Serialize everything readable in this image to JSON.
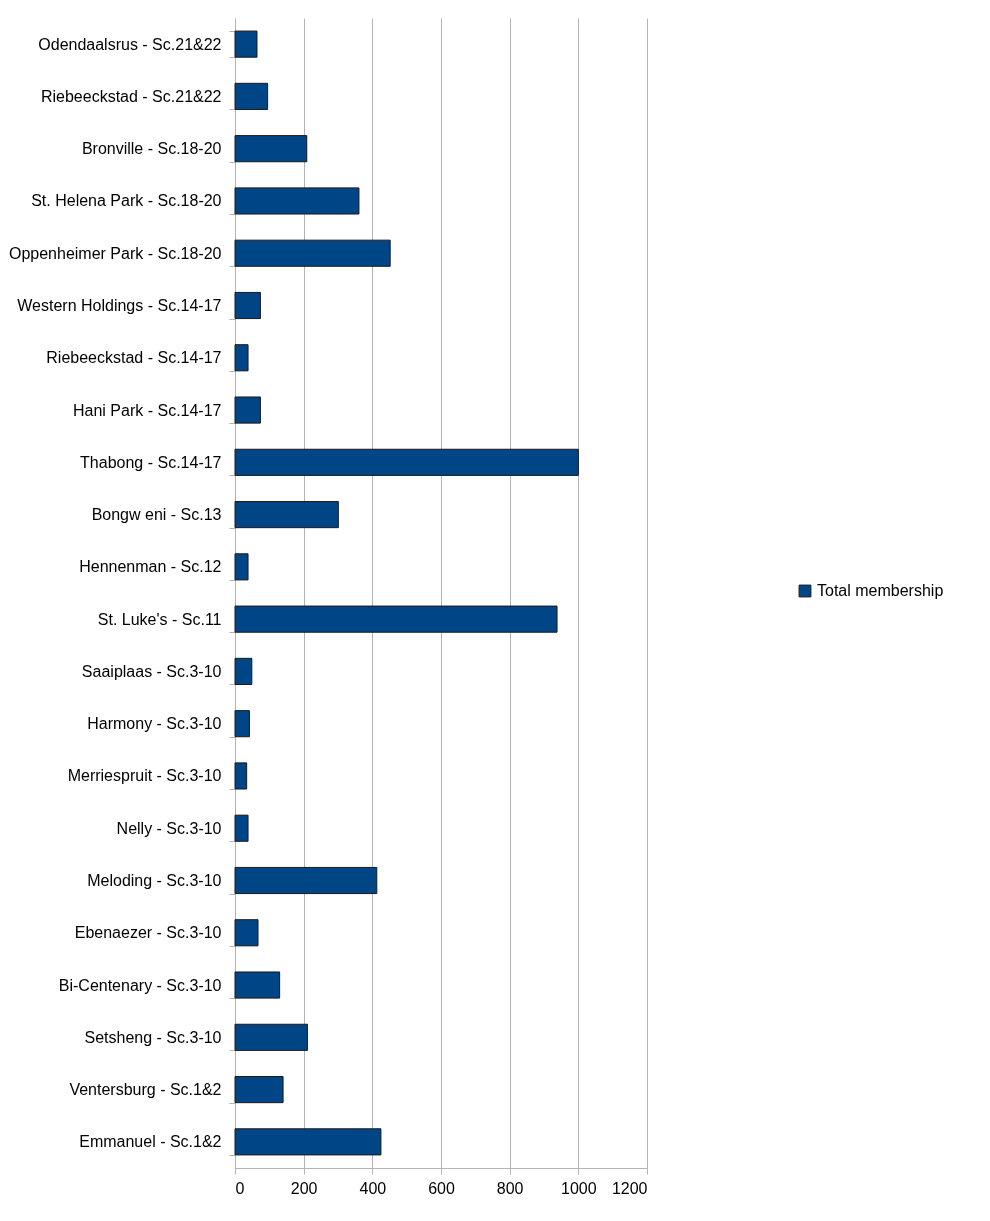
{
  "chart_data": {
    "type": "bar",
    "orientation": "horizontal",
    "categories": [
      "Odendaalsrus - Sc.21&22",
      "Riebeeckstad - Sc.21&22",
      "Bronville - Sc.18-20",
      "St. Helena Park - Sc.18-20",
      "Oppenheimer Park - Sc.18-20",
      "Western Holdings - Sc.14-17",
      "Riebeeckstad - Sc.14-17",
      "Hani Park - Sc.14-17 ",
      "Thabong - Sc.14-17",
      "Bongw eni - Sc.13",
      "Hennenman - Sc.12",
      "St. Luke's - Sc.11",
      "Saaiplaas - Sc.3-10",
      "Harmony - Sc.3-10",
      "Merriespruit - Sc.3-10",
      "Nelly - Sc.3-10",
      "Meloding - Sc.3-10",
      "Ebenaezer - Sc.3-10",
      "Bi-Centenary - Sc.3-10",
      "Setsheng - Sc.3-10",
      "Ventersburg - Sc.1&2",
      "Emmanuel - Sc.1&2"
    ],
    "series": [
      {
        "name": "Total membership",
        "color": "#004586",
        "values": [
          64,
          95,
          209,
          361,
          452,
          74,
          38,
          74,
          1000,
          301,
          38,
          938,
          49,
          42,
          34,
          38,
          413,
          67,
          130,
          211,
          140,
          425
        ]
      }
    ],
    "xlim": [
      0,
      1200
    ],
    "xticks": [
      0,
      200,
      400,
      600,
      800,
      1000,
      1200
    ],
    "grid": "x",
    "legend": "right"
  }
}
